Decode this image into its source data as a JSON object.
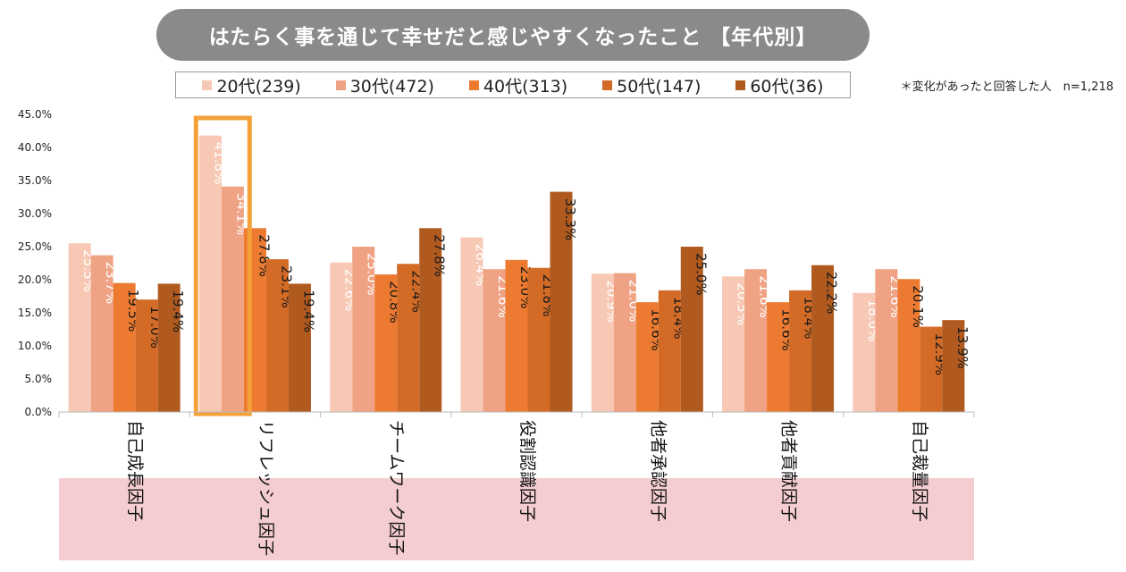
{
  "chart_data": {
    "type": "bar",
    "title": "はたらく事を通じて幸せだと感じやすくなったこと 【年代別】",
    "note": "＊変化があったと回答した人　n=1,218",
    "xlabel": "",
    "ylabel": "",
    "ylim": [
      0,
      45
    ],
    "yticks": [
      "0.0%",
      "5.0%",
      "10.0%",
      "15.0%",
      "20.0%",
      "25.0%",
      "30.0%",
      "35.0%",
      "40.0%",
      "45.0%"
    ],
    "categories": [
      "自己成長因子",
      "リフレッシュ因子",
      "チームワーク因子",
      "役割認識因子",
      "他者承認因子",
      "他者貢献因子",
      "自己裁量因子"
    ],
    "series": [
      {
        "name": "20代(239)",
        "color": "#f7c8b4",
        "values": [
          25.5,
          41.8,
          22.6,
          26.4,
          20.9,
          20.5,
          18.0
        ]
      },
      {
        "name": "30代(472)",
        "color": "#efa384",
        "values": [
          23.7,
          34.1,
          25.0,
          21.6,
          21.0,
          21.6,
          21.6
        ]
      },
      {
        "name": "40代(313)",
        "color": "#ec7a30",
        "values": [
          19.5,
          27.8,
          20.8,
          23.0,
          16.6,
          16.6,
          20.1
        ]
      },
      {
        "name": "50代(147)",
        "color": "#d36b26",
        "values": [
          17.0,
          23.1,
          22.4,
          21.8,
          18.4,
          18.4,
          12.9
        ]
      },
      {
        "name": "60代(36)",
        "color": "#b05a20",
        "values": [
          19.4,
          19.4,
          27.8,
          33.3,
          25.0,
          22.2,
          13.9
        ]
      }
    ],
    "data_labels": [
      [
        "25.5%",
        "41.8%",
        "22.6%",
        "26.4%",
        "20.9%",
        "20.5%",
        "18.0%"
      ],
      [
        "23.7%",
        "34.1%",
        "25.0%",
        "21.6%",
        "21.0%",
        "21.6%",
        "21.6%"
      ],
      [
        "19.5%",
        "27.8%",
        "20.8%",
        "23.0%",
        "16.6%",
        "16.6%",
        "20.1%"
      ],
      [
        "17.0%",
        "23.1%",
        "22.4%",
        "21.8%",
        "18.4%",
        "18.4%",
        "12.9%"
      ],
      [
        "19.4%",
        "19.4%",
        "27.8%",
        "33.3%",
        "25.0%",
        "22.2%",
        "13.9%"
      ]
    ],
    "highlight_category": "リフレッシュ因子",
    "highlight_color": "#f5a13a",
    "label_band_color": "#f4cdd0"
  }
}
